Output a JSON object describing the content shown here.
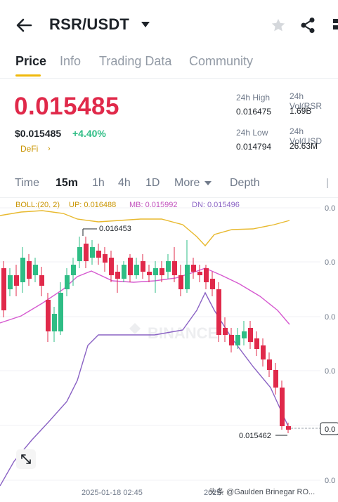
{
  "header": {
    "pair": "RSR/USDT",
    "back_icon": "arrow-left-icon",
    "star_icon": "star-icon",
    "share_icon": "share-icon"
  },
  "tabs": [
    "Price",
    "Info",
    "Trading Data",
    "Community"
  ],
  "price": {
    "last": "0.015485",
    "usd": "$0.015485",
    "change": "+4.40%",
    "tag": "DeFi",
    "tag_caret": "›"
  },
  "stats": {
    "high_label": "24h High",
    "high_value": "0.016475",
    "low_label": "24h Low",
    "low_value": "0.014794",
    "vol_base_label": "24h Vol(RSR",
    "vol_base_value": "1.69B",
    "vol_quote_label": "24h Vol(USD",
    "vol_quote_value": "26.63M"
  },
  "intervals": {
    "items": [
      "Time",
      "15m",
      "1h",
      "4h",
      "1D",
      "More",
      "Depth"
    ],
    "active": "15m"
  },
  "legend": {
    "boll": "BOLL:(20, 2)",
    "up": "UP: 0.016488",
    "mb": "MB: 0.015992",
    "dn": "DN: 0.015496"
  },
  "colors": {
    "up": "#2ebd85",
    "down": "#e0294a",
    "boll_up": "#e8b92e",
    "boll_mb": "#d65ad0",
    "boll_dn": "#8a62c4",
    "accent": "#f0b90b"
  },
  "chart_data": {
    "type": "candlestick",
    "max_label": "0.016453",
    "min_label": "0.015462",
    "last_price_label": "0.0",
    "y_axis_labels": [
      "0.0",
      "0.0",
      "0.0",
      "0.0",
      "0.0",
      "0.0"
    ],
    "x_labels": [
      "2025-01-18 02:45",
      "2025"
    ],
    "watermark": "BINANCE",
    "credit": "头条 @Gaulden Brinegar RO..."
  }
}
